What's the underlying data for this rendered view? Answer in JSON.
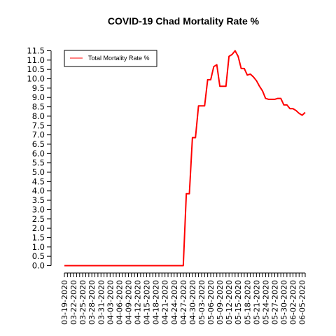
{
  "chart_data": {
    "type": "line",
    "title": "COVID-19 Chad Mortality Rate %",
    "xlabel": "",
    "ylabel": "",
    "ylim": [
      0,
      11.5
    ],
    "yticks": [
      0,
      0.5,
      1,
      1.5,
      2,
      2.5,
      3,
      3.5,
      4,
      4.5,
      5,
      5.5,
      6,
      6.5,
      7,
      7.5,
      8,
      8.5,
      9,
      9.5,
      10,
      10.5,
      11,
      11.5
    ],
    "ytick_labels": [
      "0.0",
      "0.5",
      "1.0",
      "1.5",
      "2.0",
      "2.5",
      "3.0",
      "3.5",
      "4.0",
      "4.5",
      "5.0",
      "5.5",
      "6.0",
      "6.5",
      "7.0",
      "7.5",
      "8.0",
      "8.5",
      "9.0",
      "9.5",
      "10.0",
      "10.5",
      "11.0",
      "11.5"
    ],
    "xtick_labels": [
      "03-19-2020",
      "03-22-2020",
      "03-25-2020",
      "03-28-2020",
      "03-31-2020",
      "04-03-2020",
      "04-06-2020",
      "04-09-2020",
      "04-12-2020",
      "04-15-2020",
      "04-18-2020",
      "04-21-2020",
      "04-24-2020",
      "04-27-2020",
      "04-30-2020",
      "05-03-2020",
      "05-06-2020",
      "05-09-2020",
      "05-12-2020",
      "05-15-2020",
      "05-18-2020",
      "05-21-2020",
      "05-24-2020",
      "05-27-2020",
      "05-30-2020",
      "06-02-2020",
      "06-05-2020"
    ],
    "x": [
      "03-19-2020",
      "03-20-2020",
      "03-21-2020",
      "03-22-2020",
      "03-23-2020",
      "03-24-2020",
      "03-25-2020",
      "03-26-2020",
      "03-27-2020",
      "03-28-2020",
      "03-29-2020",
      "03-30-2020",
      "03-31-2020",
      "04-01-2020",
      "04-02-2020",
      "04-03-2020",
      "04-04-2020",
      "04-05-2020",
      "04-06-2020",
      "04-07-2020",
      "04-08-2020",
      "04-09-2020",
      "04-10-2020",
      "04-11-2020",
      "04-12-2020",
      "04-13-2020",
      "04-14-2020",
      "04-15-2020",
      "04-16-2020",
      "04-17-2020",
      "04-18-2020",
      "04-19-2020",
      "04-20-2020",
      "04-21-2020",
      "04-22-2020",
      "04-23-2020",
      "04-24-2020",
      "04-25-2020",
      "04-26-2020",
      "04-27-2020",
      "04-28-2020",
      "04-29-2020",
      "04-30-2020",
      "05-01-2020",
      "05-02-2020",
      "05-03-2020",
      "05-04-2020",
      "05-05-2020",
      "05-06-2020",
      "05-07-2020",
      "05-08-2020",
      "05-09-2020",
      "05-10-2020",
      "05-11-2020",
      "05-12-2020",
      "05-13-2020",
      "05-14-2020",
      "05-15-2020",
      "05-16-2020",
      "05-17-2020",
      "05-18-2020",
      "05-19-2020",
      "05-20-2020",
      "05-21-2020",
      "05-22-2020",
      "05-23-2020",
      "05-24-2020",
      "05-25-2020",
      "05-26-2020",
      "05-27-2020",
      "05-28-2020",
      "05-29-2020",
      "05-30-2020",
      "05-31-2020",
      "06-01-2020",
      "06-02-2020",
      "06-03-2020",
      "06-04-2020",
      "06-05-2020",
      "06-06-2020"
    ],
    "series": [
      {
        "name": "Total Mortality Rate %",
        "color": "#ff0000",
        "values": [
          0,
          0,
          0,
          0,
          0,
          0,
          0,
          0,
          0,
          0,
          0,
          0,
          0,
          0,
          0,
          0,
          0,
          0,
          0,
          0,
          0,
          0,
          0,
          0,
          0,
          0,
          0,
          0,
          0,
          0,
          0,
          0,
          0,
          0,
          0,
          0,
          0,
          0,
          0,
          0,
          3.85,
          3.85,
          6.85,
          6.85,
          8.55,
          8.55,
          8.55,
          9.95,
          9.95,
          10.65,
          10.75,
          9.6,
          9.6,
          9.6,
          11.2,
          11.3,
          11.5,
          11.2,
          10.55,
          10.55,
          10.2,
          10.25,
          10.1,
          9.9,
          9.6,
          9.35,
          8.95,
          8.9,
          8.9,
          8.9,
          8.95,
          8.95,
          8.6,
          8.6,
          8.4,
          8.4,
          8.3,
          8.15,
          8.05,
          8.2
        ]
      }
    ],
    "legend_position": "top-left",
    "grid": false
  }
}
